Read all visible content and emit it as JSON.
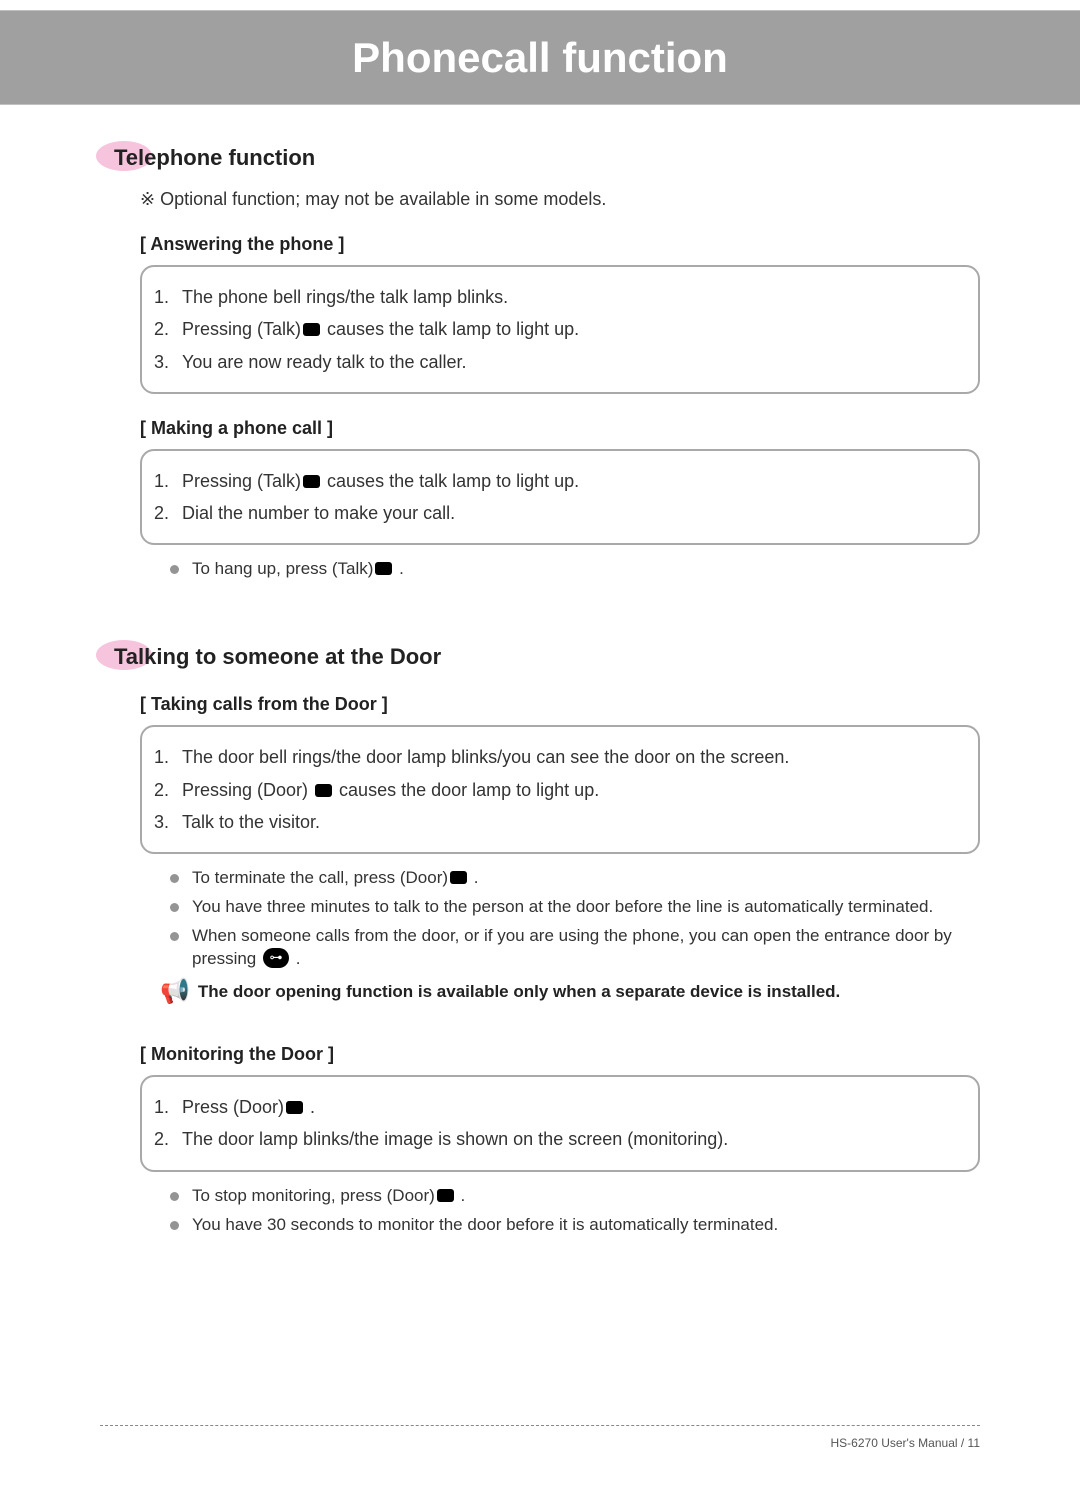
{
  "header": {
    "title": "Phonecall function"
  },
  "colors": {
    "band": "#a0a0a0",
    "pink": "#f6c4dd",
    "border": "#a9a9a9",
    "bullet": "#949494"
  },
  "section1": {
    "title": "Telephone function",
    "note_prefix": "※",
    "note": "Optional function; may not be available in some models.",
    "sub1": {
      "heading": "[ Answering the phone ]",
      "steps": [
        "The phone bell rings/the talk lamp blinks.",
        {
          "pre": "Pressing (Talk)",
          "icon": "btn",
          "post": " causes the talk lamp to light up."
        },
        "You are now ready talk to the caller."
      ]
    },
    "sub2": {
      "heading": "[ Making a phone call ]",
      "steps": [
        {
          "pre": "Pressing (Talk)",
          "icon": "btn",
          "post": " causes the talk lamp to light up."
        },
        "Dial the number to make your call."
      ],
      "bullets": [
        {
          "pre": "To hang up, press (Talk)",
          "icon": "btn",
          "post": " ."
        }
      ]
    }
  },
  "section2": {
    "title": "Talking to someone at the Door",
    "sub1": {
      "heading": "[ Taking calls from the Door ]",
      "steps": [
        "The door bell rings/the door lamp blinks/you can see the door on the screen.",
        {
          "pre": "Pressing (Door) ",
          "icon": "btn",
          "post": " causes the door lamp to light up."
        },
        "Talk to the visitor."
      ],
      "bullets": [
        {
          "pre": "To terminate the call, press (Door)",
          "icon": "btn",
          "post": " ."
        },
        {
          "pre": "You have three minutes to talk to the person at the door before the line is automatically terminated."
        },
        {
          "pre": "When someone calls from the door, or if you are using the phone, you can open the entrance door by pressing ",
          "icon": "key",
          "post": " ."
        }
      ],
      "warning": "The door opening function is available only when a separate device is installed."
    },
    "sub2": {
      "heading": "[ Monitoring the Door ]",
      "steps": [
        {
          "pre": "Press (Door)",
          "icon": "btn",
          "post": " ."
        },
        "The door lamp blinks/the image is shown on the screen (monitoring)."
      ],
      "bullets": [
        {
          "pre": "To stop monitoring, press (Door)",
          "icon": "btn",
          "post": " ."
        },
        {
          "pre": "You have 30 seconds to monitor the door before it is automatically terminated."
        }
      ]
    }
  },
  "footer": {
    "text": "HS-6270 User's Manual  /  11"
  }
}
